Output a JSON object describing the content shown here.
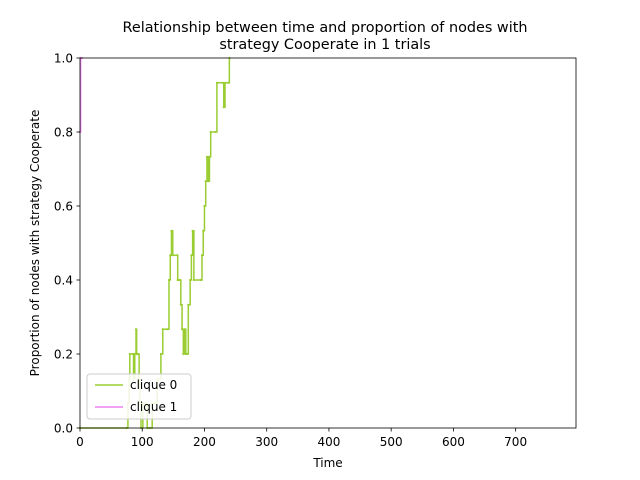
{
  "chart_data": {
    "type": "line",
    "title_line1": "Relationship between time and proportion of nodes with",
    "title_line2": "strategy Cooperate in 1 trials",
    "xlabel": "Time",
    "ylabel": "Proportion of nodes with strategy Cooperate",
    "xlim": [
      0,
      797
    ],
    "ylim": [
      0,
      1.0
    ],
    "x_ticks": [
      0,
      100,
      200,
      300,
      400,
      500,
      600,
      700
    ],
    "x_tick_labels": [
      "0",
      "100",
      "200",
      "300",
      "400",
      "500",
      "600",
      "700"
    ],
    "y_ticks": [
      0,
      0.2,
      0.4,
      0.6,
      0.8,
      1.0
    ],
    "y_tick_labels": [
      "0.0",
      "0.2",
      "0.4",
      "0.6",
      "0.8",
      "1.0"
    ],
    "grid": false,
    "legend_position": "lower-left",
    "series": [
      {
        "name": "clique 0",
        "color": "#9acd32",
        "points": [
          [
            0,
            0
          ],
          [
            75,
            0
          ],
          [
            77,
            0.067
          ],
          [
            79,
            0.133
          ],
          [
            80,
            0.2
          ],
          [
            85,
            0.2
          ],
          [
            86,
            0.133
          ],
          [
            88,
            0.2
          ],
          [
            90,
            0.267
          ],
          [
            91,
            0.2
          ],
          [
            93,
            0.2
          ],
          [
            95,
            0.133
          ],
          [
            96,
            0.067
          ],
          [
            98,
            0
          ],
          [
            101,
            0.067
          ],
          [
            105,
            0.067
          ],
          [
            108,
            0
          ],
          [
            112,
            0
          ],
          [
            116,
            0.067
          ],
          [
            120,
            0.067
          ],
          [
            124,
            0.133
          ],
          [
            130,
            0.2
          ],
          [
            133,
            0.267
          ],
          [
            140,
            0.267
          ],
          [
            143,
            0.4
          ],
          [
            145,
            0.467
          ],
          [
            147,
            0.533
          ],
          [
            149,
            0.467
          ],
          [
            156,
            0.467
          ],
          [
            157,
            0.4
          ],
          [
            160,
            0.4
          ],
          [
            162,
            0.333
          ],
          [
            164,
            0.267
          ],
          [
            166,
            0.2
          ],
          [
            168,
            0.267
          ],
          [
            170,
            0.2
          ],
          [
            172,
            0.2
          ],
          [
            174,
            0.333
          ],
          [
            177,
            0.4
          ],
          [
            179,
            0.467
          ],
          [
            181,
            0.533
          ],
          [
            183,
            0.4
          ],
          [
            194,
            0.4
          ],
          [
            196,
            0.467
          ],
          [
            198,
            0.533
          ],
          [
            200,
            0.6
          ],
          [
            202,
            0.667
          ],
          [
            204,
            0.733
          ],
          [
            206,
            0.667
          ],
          [
            208,
            0.733
          ],
          [
            210,
            0.8
          ],
          [
            218,
            0.8
          ],
          [
            220,
            0.933
          ],
          [
            229,
            0.933
          ],
          [
            231,
            0.867
          ],
          [
            233,
            0.933
          ],
          [
            238,
            0.933
          ],
          [
            240,
            1.0
          ]
        ]
      },
      {
        "name": "clique 1",
        "color": "#ee82ee",
        "points": [
          [
            0,
            0.8
          ],
          [
            1,
            1.0
          ],
          [
            3,
            1.0
          ]
        ]
      }
    ]
  }
}
